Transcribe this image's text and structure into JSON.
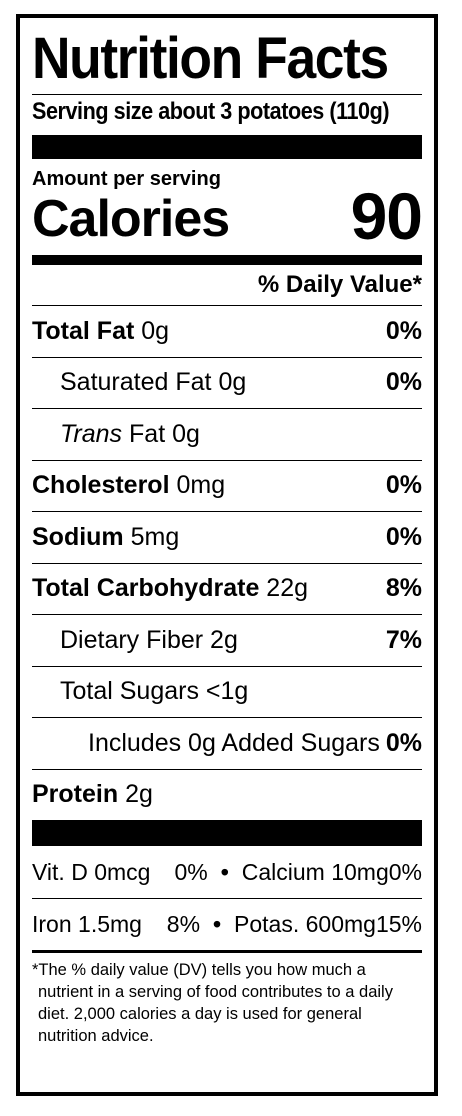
{
  "title": "Nutrition Facts",
  "serving": "Serving size about 3 potatoes (110g)",
  "amount_per_serving": "Amount per serving",
  "calories": {
    "label": "Calories",
    "value": "90"
  },
  "dv_header": "% Daily Value*",
  "nutrients": [
    {
      "name": "Total Fat",
      "amount": "0g",
      "dv": "0%"
    },
    {
      "name": "Saturated Fat",
      "amount": "0g",
      "dv": "0%"
    },
    {
      "name": "Trans",
      "name_suffix": "Fat",
      "amount": "0g",
      "dv": ""
    },
    {
      "name": "Cholesterol",
      "amount": "0mg",
      "dv": "0%"
    },
    {
      "name": "Sodium",
      "amount": "5mg",
      "dv": "0%"
    },
    {
      "name": "Total Carbohydrate",
      "amount": "22g",
      "dv": "8%"
    },
    {
      "name": "Dietary Fiber",
      "amount": "2g",
      "dv": "7%"
    },
    {
      "name": "Total Sugars",
      "amount": "<1g",
      "dv": ""
    },
    {
      "name": "Includes 0g Added Sugars",
      "amount": "",
      "dv": "0%"
    },
    {
      "name": "Protein",
      "amount": "2g",
      "dv": ""
    }
  ],
  "vitamins": [
    {
      "left": {
        "name": "Vit. D 0mcg",
        "dv": "0%"
      },
      "right": {
        "name": "Calcium 10mg",
        "dv": "0%"
      }
    },
    {
      "left": {
        "name": "Iron 1.5mg",
        "dv": "8%"
      },
      "right": {
        "name": "Potas. 600mg",
        "dv": "15%"
      }
    }
  ],
  "separator": "•",
  "footnote": "*The % daily value (DV) tells you how much a nutrient in a serving of food contributes to a daily diet. 2,000 calories a day is used for general nutrition advice."
}
